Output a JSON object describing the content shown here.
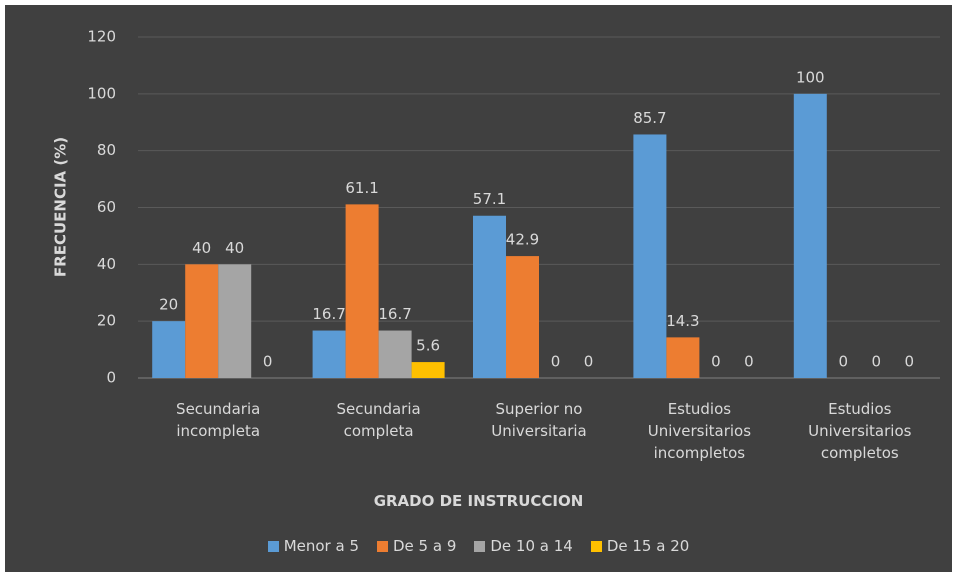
{
  "chart_data": {
    "type": "bar",
    "x_label": "GRADO DE INSTRUCCION",
    "y_label": "FRECUENCIA (%)",
    "categories": [
      "Secundaria incompleta",
      "Secundaria completa",
      "Superior no Universitaria",
      "Estudios Universitarios incompletos",
      "Estudios Universitarios completos"
    ],
    "series": [
      {
        "name": "Menor a 5",
        "color": "#5b9bd5",
        "values": [
          20,
          16.7,
          57.1,
          85.7,
          100
        ]
      },
      {
        "name": "De 5 a 9",
        "color": "#ed7d31",
        "values": [
          40,
          61.1,
          42.9,
          14.3,
          0
        ]
      },
      {
        "name": "De 10 a 14",
        "color": "#a5a5a5",
        "values": [
          40,
          16.7,
          0,
          0,
          0
        ]
      },
      {
        "name": "De 15 a 20",
        "color": "#ffc000",
        "values": [
          0,
          5.6,
          0,
          0,
          0
        ]
      }
    ],
    "ylim": [
      0,
      120
    ],
    "yticks": [
      0,
      20,
      40,
      60,
      80,
      100,
      120
    ],
    "grid": true,
    "legend": "bottom"
  }
}
